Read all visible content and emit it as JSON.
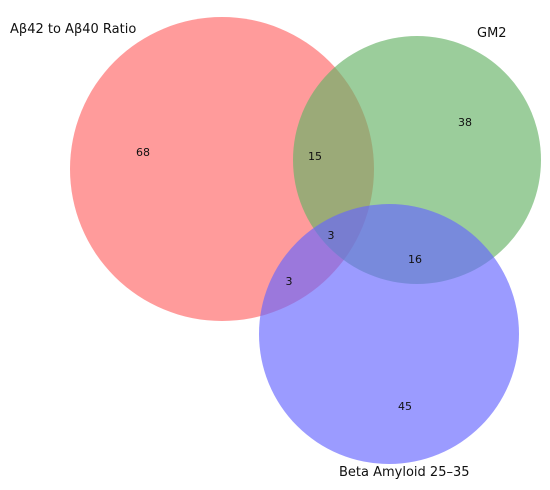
{
  "sets": [
    {
      "name": "Aβ42 to Aβ40 Ratio",
      "color": "#ff6666"
    },
    {
      "name": "GM2",
      "color": "#66b266"
    },
    {
      "name": "Beta Amyloid 25–35",
      "color": "#6666ff"
    }
  ],
  "regions": {
    "a_only": "68",
    "b_only": "38",
    "c_only": "45",
    "ab_only": "15",
    "ac_only": "3",
    "bc_only": "16",
    "abc": "3"
  }
}
